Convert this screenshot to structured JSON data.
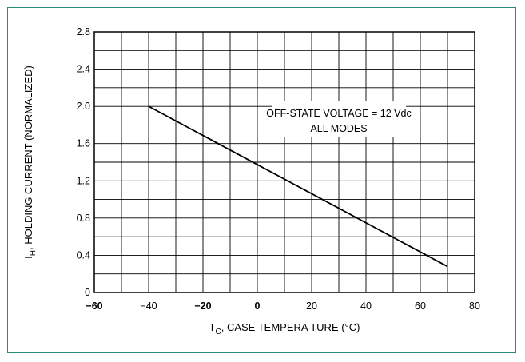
{
  "chart_data": {
    "type": "line",
    "xlabel_main": "T",
    "xlabel_sub": "C",
    "xlabel_rest": ", CASE TEMPERA TURE (°C)",
    "ylabel_main": "I",
    "ylabel_sub": "H",
    "ylabel_rest": ", HOLDING CURRENT (NORMALIZED)",
    "annotation_line1": "OFF-STATE VOLTAGE = 12 Vdc",
    "annotation_line2": "ALL MODES",
    "xlim": [
      -60,
      80
    ],
    "ylim": [
      0,
      2.8
    ],
    "x_ticks": [
      -60,
      -40,
      -20,
      0,
      20,
      40,
      60,
      80
    ],
    "x_tick_labels": [
      "−60",
      "−40",
      "−20",
      "0",
      "20",
      "40",
      "60",
      "80"
    ],
    "x_tick_bold": [
      true,
      false,
      true,
      true,
      false,
      false,
      false,
      false
    ],
    "y_ticks": [
      0,
      0.4,
      0.8,
      1.2,
      1.6,
      2.0,
      2.4,
      2.8
    ],
    "y_tick_labels": [
      "0",
      "0.4",
      "0.8",
      "1.2",
      "1.6",
      "2.0",
      "2.4",
      "2.8"
    ],
    "grid": true,
    "series": [
      {
        "x": [
          -40,
          70
        ],
        "y": [
          2.0,
          0.28
        ]
      }
    ],
    "colors": {
      "frame": "#2a8a78",
      "line": "#000000",
      "grid": "#000000"
    }
  }
}
